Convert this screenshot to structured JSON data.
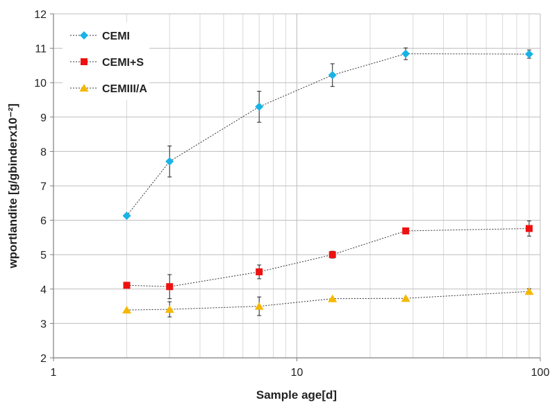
{
  "chart_data": {
    "type": "line",
    "xscale": "log",
    "xlim": [
      1,
      100
    ],
    "ylim": [
      2,
      12
    ],
    "x_ticks": [
      "1",
      "10",
      "100"
    ],
    "y_ticks": [
      "2",
      "3",
      "4",
      "5",
      "6",
      "7",
      "8",
      "9",
      "10",
      "11",
      "12"
    ],
    "xlabel": "Sample age[d]",
    "ylabel": "wportlandite [g/gbinderx10⁻²]",
    "grid": true,
    "legend_position": "top-left",
    "series": [
      {
        "name": "CEMI",
        "color": "#19B3E6",
        "marker": "diamond",
        "x": [
          2,
          3,
          7,
          14,
          28,
          90
        ],
        "y": [
          6.13,
          7.71,
          9.3,
          10.22,
          10.84,
          10.83
        ],
        "err": [
          0,
          0.45,
          0.45,
          0.33,
          0.17,
          0.12
        ]
      },
      {
        "name": "CEMI+S",
        "color": "#EE1111",
        "marker": "square",
        "x": [
          2,
          3,
          7,
          14,
          28,
          90
        ],
        "y": [
          4.11,
          4.07,
          4.5,
          5.0,
          5.69,
          5.76
        ],
        "err": [
          0,
          0.35,
          0.2,
          0.1,
          0,
          0.22
        ]
      },
      {
        "name": "CEMIII/A",
        "color": "#F5B800",
        "marker": "triangle",
        "x": [
          2,
          3,
          7,
          14,
          28,
          90
        ],
        "y": [
          3.39,
          3.41,
          3.5,
          3.72,
          3.73,
          3.93
        ],
        "err": [
          0,
          0.22,
          0.27,
          0,
          0,
          0.08
        ]
      }
    ]
  }
}
